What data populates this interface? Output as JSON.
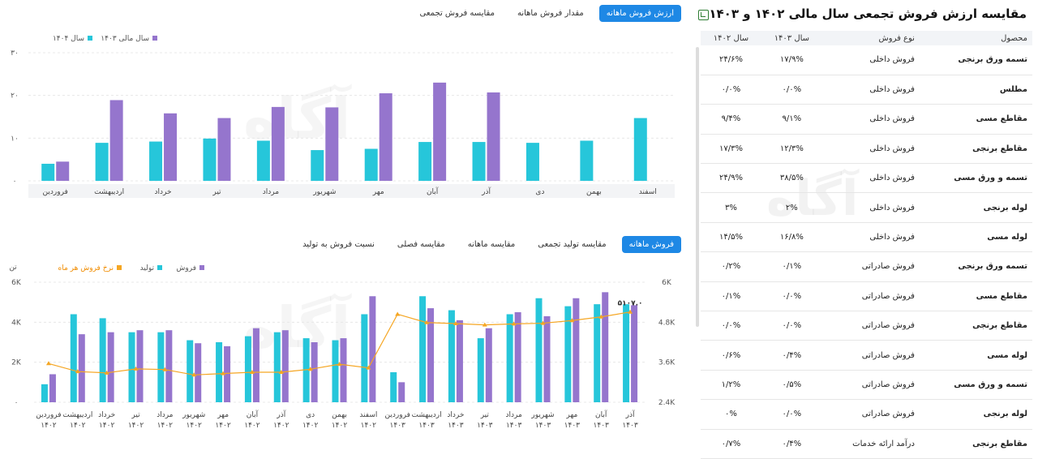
{
  "top_tabs": [
    {
      "label": "ارزش فروش ماهانه",
      "active": true
    },
    {
      "label": "مقدار فروش ماهانه",
      "active": false
    },
    {
      "label": "مقایسه فروش تجمعی",
      "active": false
    }
  ],
  "bottom_tabs": [
    {
      "label": "فروش ماهانه",
      "active": true
    },
    {
      "label": "مقایسه تولید تجمعی",
      "active": false
    },
    {
      "label": "مقایسه ماهانه",
      "active": false
    },
    {
      "label": "مقایسه فصلی",
      "active": false
    },
    {
      "label": "نسبت فروش به تولید",
      "active": false
    }
  ],
  "watermark": "آگاه",
  "colors": {
    "teal": "#26c6da",
    "purple": "#9575cd",
    "orange": "#f5a623",
    "accent": "#1e88e5"
  },
  "chart_data": [
    {
      "type": "bar",
      "categories": [
        "اسفند",
        "بهمن",
        "دی",
        "آذر",
        "آبان",
        "مهر",
        "شهریور",
        "مرداد",
        "تیر",
        "خرداد",
        "اردیبهشت",
        "فروردین"
      ],
      "series": [
        {
          "name": "سال ۱۴۰۴",
          "color": "#26c6da",
          "values": [
            14.7,
            9.4,
            8.9,
            9.1,
            9.1,
            7.5,
            7.2,
            9.4,
            9.9,
            9.2,
            8.9,
            4.0
          ]
        },
        {
          "name": "سال مالی ۱۴۰۳",
          "color": "#9575cd",
          "values": [
            null,
            null,
            null,
            20.7,
            23.0,
            20.5,
            17.2,
            17.3,
            14.7,
            15.8,
            18.9,
            4.5
          ]
        }
      ],
      "ylim": [
        0,
        30
      ],
      "yticks": [
        "۰",
        "۱۰",
        "۲۰",
        "۳۰"
      ],
      "legend_position": "top-left"
    },
    {
      "type": "bar",
      "categories": [
        [
          "آذر",
          "۱۴۰۳"
        ],
        [
          "آبان",
          "۱۴۰۳"
        ],
        [
          "مهر",
          "۱۴۰۳"
        ],
        [
          "شهریور",
          "۱۴۰۳"
        ],
        [
          "مرداد",
          "۱۴۰۳"
        ],
        [
          "تیر",
          "۱۴۰۳"
        ],
        [
          "خرداد",
          "۱۴۰۳"
        ],
        [
          "اردیبهشت",
          "۱۴۰۳"
        ],
        [
          "فروردین",
          "۱۴۰۳"
        ],
        [
          "اسفند",
          "۱۴۰۲"
        ],
        [
          "بهمن",
          "۱۴۰۲"
        ],
        [
          "دی",
          "۱۴۰۲"
        ],
        [
          "آذر",
          "۱۴۰۲"
        ],
        [
          "آبان",
          "۱۴۰۲"
        ],
        [
          "مهر",
          "۱۴۰۲"
        ],
        [
          "شهریور",
          "۱۴۰۲"
        ],
        [
          "مرداد",
          "۱۴۰۲"
        ],
        [
          "تیر",
          "۱۴۰۲"
        ],
        [
          "خرداد",
          "۱۴۰۲"
        ],
        [
          "اردیبهشت",
          "۱۴۰۲"
        ],
        [
          "فروردین",
          "۱۴۰۲"
        ]
      ],
      "series": [
        {
          "name": "تولید",
          "color": "#26c6da",
          "axis": "left",
          "values": [
            4900,
            4900,
            4800,
            5200,
            4400,
            3200,
            4600,
            5300,
            1500,
            4400,
            3100,
            3200,
            3500,
            3300,
            3000,
            3100,
            3500,
            3500,
            4200,
            4400,
            900
          ]
        },
        {
          "name": "فروش",
          "color": "#9575cd",
          "axis": "left",
          "values": [
            4850,
            5500,
            5200,
            4300,
            4500,
            3700,
            4100,
            4700,
            1000,
            5300,
            3200,
            3000,
            3600,
            3700,
            2800,
            2950,
            3600,
            3600,
            3500,
            3400,
            1400
          ]
        },
        {
          "name": "نرخ فروش هر ماه",
          "color": "#f5a623",
          "axis": "right",
          "type": "line",
          "values": [
            5107,
            4960,
            4850,
            4770,
            4750,
            4720,
            4760,
            4790,
            5040,
            3430,
            3540,
            3390,
            3300,
            3300,
            3260,
            3220,
            3380,
            3400,
            3280,
            3320,
            3560
          ]
        }
      ],
      "ylim_left": [
        0,
        6000
      ],
      "yticks_left": [
        "۰",
        "2K",
        "4K",
        "6K"
      ],
      "ylim_right": [
        2400,
        6000
      ],
      "yticks_right": [
        "2.4K",
        "3.6K",
        "4.8K",
        "6K"
      ],
      "left_axis_label": "تن",
      "annotation": {
        "index": 0,
        "label": "۵۱۰۷.۰"
      },
      "legend_position": "top-left"
    }
  ],
  "table": {
    "title": "مقایسه ارزش فروش تجمعی سال مالی ۱۴۰۲ و ۱۴۰۳",
    "headers": [
      "محصول",
      "نوع فروش",
      "سال ۱۴۰۳",
      "سال ۱۴۰۲"
    ],
    "rows": [
      [
        "تسمه ورق برنجی",
        "فروش داخلی",
        "۱۷/۹%",
        "۲۴/۶%"
      ],
      [
        "مطلس",
        "فروش داخلی",
        "۰/۰%",
        "۰/۰%"
      ],
      [
        "مقاطع مسی",
        "فروش داخلی",
        "۹/۱%",
        "۹/۴%"
      ],
      [
        "مقاطع برنجی",
        "فروش داخلی",
        "۱۲/۳%",
        "۱۷/۳%"
      ],
      [
        "تسمه و ورق مسی",
        "فروش داخلی",
        "۳۸/۵%",
        "۲۴/۹%"
      ],
      [
        "لوله برنجی",
        "فروش داخلی",
        "۲%",
        "۳%"
      ],
      [
        "لوله مسی",
        "فروش داخلی",
        "۱۶/۸%",
        "۱۴/۵%"
      ],
      [
        "تسمه ورق برنجی",
        "فروش صادراتی",
        "۰/۱%",
        "۰/۲%"
      ],
      [
        "مقاطع مسی",
        "فروش صادراتی",
        "۰/۰%",
        "۰/۱%"
      ],
      [
        "مقاطع برنجی",
        "فروش صادراتی",
        "۰/۰%",
        "۰/۰%"
      ],
      [
        "لوله مسی",
        "فروش صادراتی",
        "۰/۴%",
        "۰/۶%"
      ],
      [
        "تسمه و ورق مسی",
        "فروش صادراتی",
        "۰/۵%",
        "۱/۲%"
      ],
      [
        "لوله برنجی",
        "فروش صادراتی",
        "۰/۰%",
        "۰%"
      ],
      [
        "مقاطع برنجی",
        "درآمد ارائه خدمات",
        "۰/۴%",
        "۰/۷%"
      ]
    ]
  }
}
